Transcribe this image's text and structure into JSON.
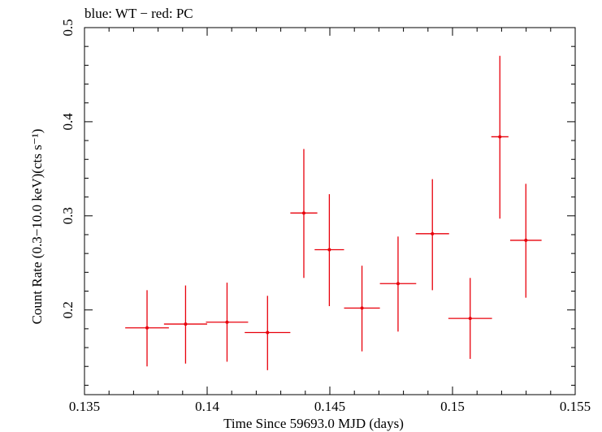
{
  "chart_data": {
    "type": "scatter",
    "title": "blue: WT − red: PC",
    "xlabel": "Time Since 59693.0 MJD (days)",
    "ylabel": "Count Rate (0.3−10.0 keV)(cts s⁻¹)",
    "xlim": [
      0.135,
      0.155
    ],
    "ylim": [
      0.11,
      0.5
    ],
    "x_ticks": [
      0.135,
      0.14,
      0.145,
      0.15,
      0.155
    ],
    "x_tick_labels": [
      "0.135",
      "0.14",
      "0.145",
      "0.15",
      "0.155"
    ],
    "y_ticks": [
      0.2,
      0.3,
      0.4,
      0.5
    ],
    "y_tick_labels": [
      "0.2",
      "0.3",
      "0.4",
      "0.5"
    ],
    "grid": false,
    "series": [
      {
        "name": "PC",
        "color": "#e8000b",
        "points": [
          {
            "x": 0.13755,
            "xerr": 0.00089,
            "y": 0.181,
            "yerr_lo": 0.041,
            "yerr_hi": 0.04
          },
          {
            "x": 0.13912,
            "xerr": 0.00088,
            "y": 0.185,
            "yerr_lo": 0.042,
            "yerr_hi": 0.041
          },
          {
            "x": 0.14081,
            "xerr": 0.00086,
            "y": 0.187,
            "yerr_lo": 0.042,
            "yerr_hi": 0.042
          },
          {
            "x": 0.14246,
            "xerr": 0.00093,
            "y": 0.176,
            "yerr_lo": 0.04,
            "yerr_hi": 0.039
          },
          {
            "x": 0.14394,
            "xerr": 0.00055,
            "y": 0.303,
            "yerr_lo": 0.069,
            "yerr_hi": 0.068
          },
          {
            "x": 0.14498,
            "xerr": 0.0006,
            "y": 0.264,
            "yerr_lo": 0.06,
            "yerr_hi": 0.059
          },
          {
            "x": 0.14631,
            "xerr": 0.00073,
            "y": 0.202,
            "yerr_lo": 0.046,
            "yerr_hi": 0.045
          },
          {
            "x": 0.14778,
            "xerr": 0.00074,
            "y": 0.228,
            "yerr_lo": 0.051,
            "yerr_hi": 0.05
          },
          {
            "x": 0.14918,
            "xerr": 0.00068,
            "y": 0.281,
            "yerr_lo": 0.06,
            "yerr_hi": 0.058
          },
          {
            "x": 0.15072,
            "xerr": 0.00089,
            "y": 0.191,
            "yerr_lo": 0.043,
            "yerr_hi": 0.043
          },
          {
            "x": 0.15193,
            "xerr": 0.00035,
            "y": 0.384,
            "yerr_lo": 0.087,
            "yerr_hi": 0.086
          },
          {
            "x": 0.15299,
            "xerr": 0.00064,
            "y": 0.274,
            "yerr_lo": 0.061,
            "yerr_hi": 0.06
          }
        ]
      }
    ]
  }
}
